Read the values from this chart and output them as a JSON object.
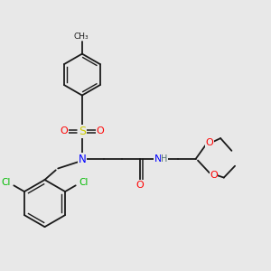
{
  "bg_color": "#e8e8e8",
  "bond_color": "#1a1a1a",
  "colors": {
    "N": "#0000ff",
    "O": "#ff0000",
    "S": "#cccc00",
    "Cl": "#00bb00",
    "H": "#507070",
    "C": "#1a1a1a"
  },
  "figsize": [
    3.0,
    3.0
  ],
  "dpi": 100
}
